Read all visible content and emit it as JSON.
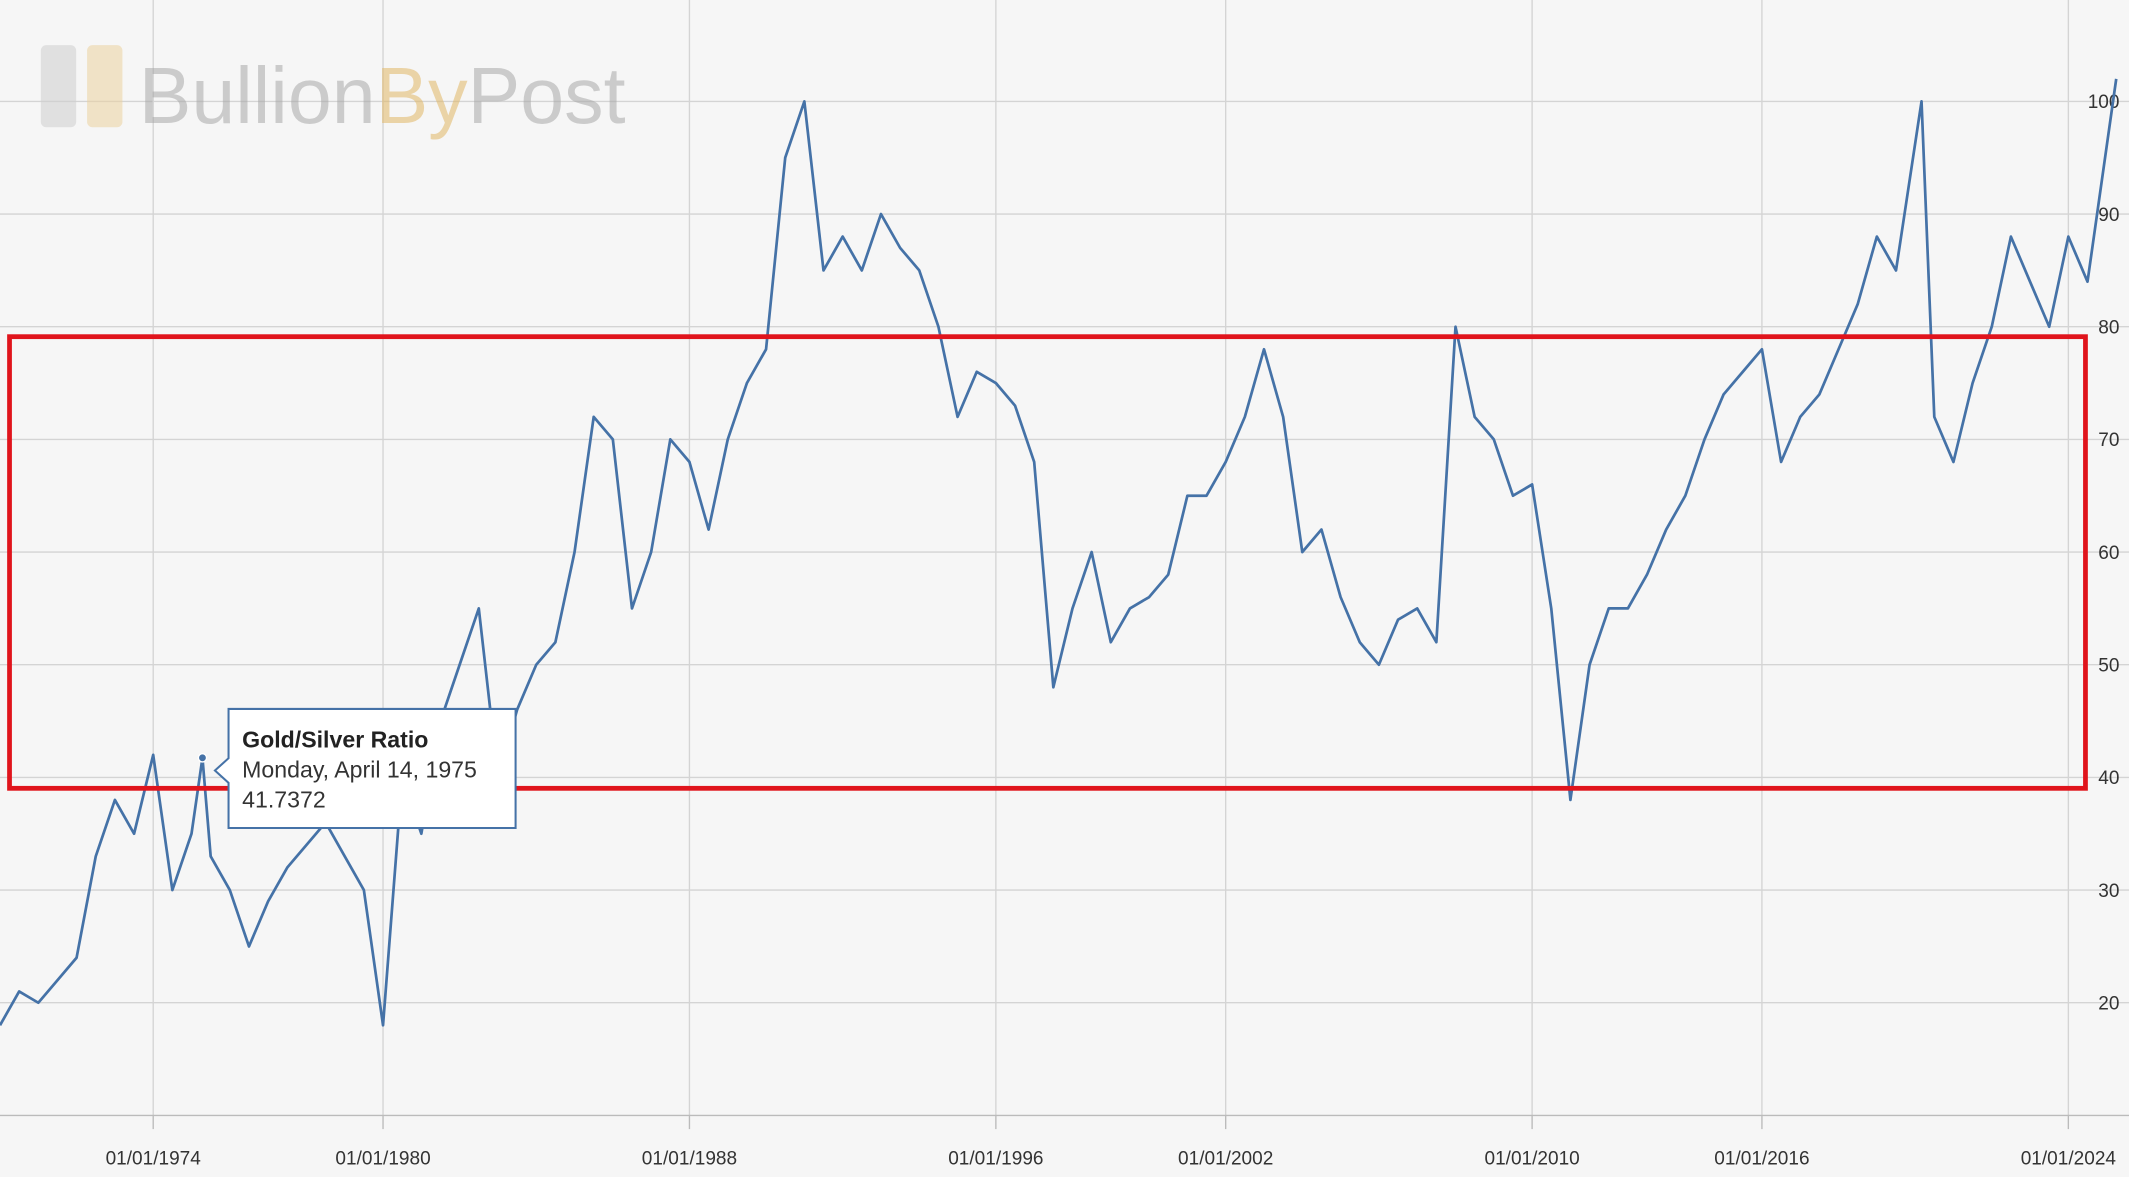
{
  "chart_data": {
    "type": "line",
    "logo": {
      "part1": "Bullion",
      "part2": "By",
      "part3": "Post"
    },
    "series": [
      {
        "name": "Gold/Silver Ratio",
        "color": "#4572a7",
        "values": [
          18,
          21,
          20,
          22,
          24,
          33,
          38,
          35,
          42,
          30,
          35,
          41.7372,
          33,
          30,
          25,
          29,
          32,
          34,
          36,
          33,
          30,
          18,
          40,
          35,
          45,
          50,
          55,
          40,
          46,
          50,
          52,
          60,
          72,
          70,
          55,
          60,
          70,
          68,
          62,
          70,
          75,
          78,
          95,
          100,
          85,
          88,
          85,
          90,
          87,
          85,
          80,
          72,
          76,
          75,
          73,
          68,
          48,
          55,
          60,
          52,
          55,
          56,
          58,
          65,
          65,
          68,
          72,
          78,
          72,
          60,
          62,
          56,
          52,
          50,
          54,
          55,
          52,
          80,
          72,
          70,
          65,
          66,
          55,
          38,
          50,
          55,
          55,
          58,
          62,
          65,
          70,
          74,
          76,
          78,
          68,
          72,
          74,
          78,
          82,
          88,
          85,
          100,
          72,
          68,
          75,
          80,
          88,
          84,
          80,
          88,
          84,
          102
        ]
      }
    ],
    "x": [
      "01/01/1970",
      "01/07/1970",
      "01/01/1971",
      "01/07/1971",
      "01/01/1972",
      "01/07/1972",
      "01/01/1973",
      "01/07/1973",
      "01/01/1974",
      "01/07/1974",
      "01/01/1975",
      "14/04/1975",
      "01/07/1975",
      "01/01/1976",
      "01/07/1976",
      "01/01/1977",
      "01/07/1977",
      "01/01/1978",
      "01/07/1978",
      "01/01/1979",
      "01/07/1979",
      "01/01/1980",
      "01/07/1980",
      "01/01/1981",
      "01/07/1981",
      "01/01/1982",
      "01/07/1982",
      "01/01/1983",
      "01/07/1983",
      "01/01/1984",
      "01/07/1984",
      "01/01/1985",
      "01/07/1985",
      "01/01/1986",
      "01/07/1986",
      "01/01/1987",
      "01/07/1987",
      "01/01/1988",
      "01/07/1988",
      "01/01/1989",
      "01/07/1989",
      "01/01/1990",
      "01/07/1990",
      "01/01/1991",
      "01/07/1991",
      "01/01/1992",
      "01/07/1992",
      "01/01/1993",
      "01/07/1993",
      "01/01/1994",
      "01/07/1994",
      "01/01/1995",
      "01/07/1995",
      "01/01/1996",
      "01/07/1996",
      "01/01/1997",
      "01/07/1997",
      "01/01/1998",
      "01/07/1998",
      "01/01/1999",
      "01/07/1999",
      "01/01/2000",
      "01/07/2000",
      "01/01/2001",
      "01/07/2001",
      "01/01/2002",
      "01/07/2002",
      "01/01/2003",
      "01/07/2003",
      "01/01/2004",
      "01/07/2004",
      "01/01/2005",
      "01/07/2005",
      "01/01/2006",
      "01/07/2006",
      "01/01/2007",
      "01/07/2007",
      "01/01/2008",
      "01/07/2008",
      "01/01/2009",
      "01/07/2009",
      "01/01/2010",
      "01/07/2010",
      "01/01/2011",
      "01/07/2011",
      "01/01/2012",
      "01/07/2012",
      "01/01/2013",
      "01/07/2013",
      "01/01/2014",
      "01/07/2014",
      "01/01/2015",
      "01/07/2015",
      "01/01/2016",
      "01/07/2016",
      "01/01/2017",
      "01/07/2017",
      "01/01/2018",
      "01/07/2018",
      "01/01/2019",
      "01/07/2019",
      "01/03/2020",
      "01/07/2020",
      "01/01/2021",
      "01/07/2021",
      "01/01/2022",
      "01/07/2022",
      "01/01/2023",
      "01/07/2023",
      "01/01/2024",
      "01/07/2024",
      "01/04/2025"
    ],
    "xlim": [
      "01/01/1970",
      "01/08/2025"
    ],
    "xticks": [
      "01/01/1974",
      "01/01/1980",
      "01/01/1988",
      "01/01/1996",
      "01/01/2002",
      "01/01/2010",
      "01/01/2016",
      "01/01/2024"
    ],
    "ylim": [
      10,
      109
    ],
    "yticks": [
      20,
      30,
      40,
      50,
      60,
      70,
      80,
      90,
      100
    ],
    "grid": true,
    "tooltip": {
      "title": "Gold/Silver Ratio",
      "date": "Monday, April 14, 1975",
      "value": 41.7372
    }
  }
}
